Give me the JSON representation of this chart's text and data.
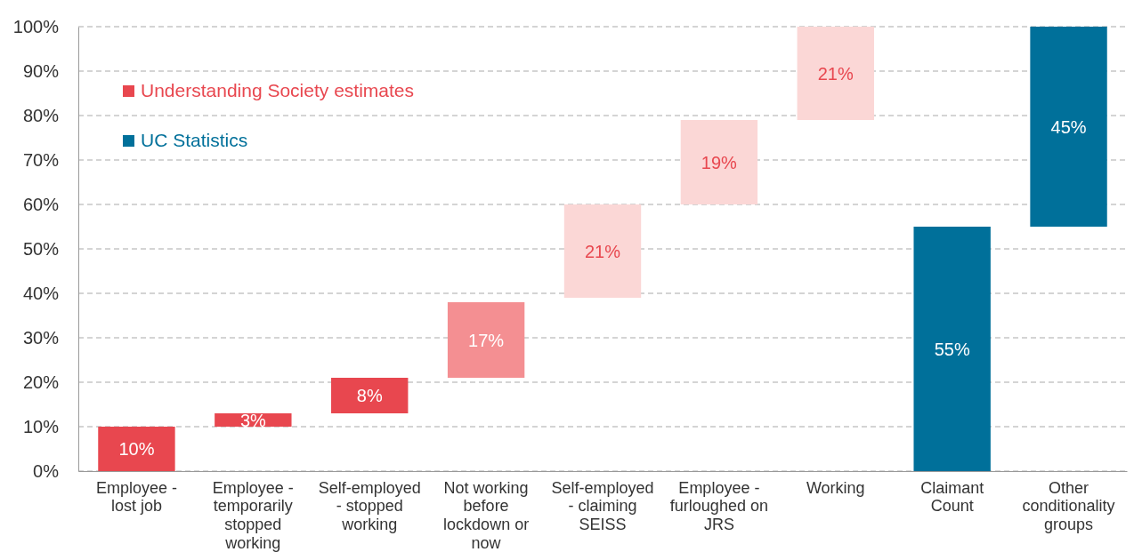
{
  "chart_data": {
    "type": "bar",
    "categories": [
      "Employee - lost job",
      "Employee - temporarily stopped working",
      "Self-employed - stopped working",
      "Not working before lockdown or now",
      "Self-employed - claiming SEISS",
      "Employee - furloughed on JRS",
      "Working",
      "Claimant Count",
      "Other conditionality groups"
    ],
    "series": [
      {
        "name": "Understanding Society estimates",
        "color": "#e8474f",
        "values": [
          10,
          3,
          8,
          17,
          21,
          19,
          21,
          null,
          null
        ],
        "base": [
          0,
          10,
          13,
          21,
          39,
          60,
          79,
          null,
          null
        ],
        "colors": [
          "#e8474f",
          "#e8474f",
          "#e8474f",
          "#f48f92",
          "#fbd7d6",
          "#fbd7d6",
          "#fbd7d6",
          null,
          null
        ],
        "value_labels": [
          "10%",
          "3%",
          "8%",
          "17%",
          "21%",
          "19%",
          "21%",
          null,
          null
        ]
      },
      {
        "name": "UC Statistics",
        "color": "#00709a",
        "values": [
          null,
          null,
          null,
          null,
          null,
          null,
          null,
          55,
          45
        ],
        "base": [
          null,
          null,
          null,
          null,
          null,
          null,
          null,
          0,
          55
        ],
        "colors": [
          null,
          null,
          null,
          null,
          null,
          null,
          null,
          "#00709a",
          "#00709a"
        ],
        "value_labels": [
          null,
          null,
          null,
          null,
          null,
          null,
          null,
          "55%",
          "45%"
        ]
      }
    ],
    "ylim": [
      0,
      100
    ],
    "yticks": [
      {
        "value": 0,
        "label": "0%"
      },
      {
        "value": 10,
        "label": "10%"
      },
      {
        "value": 20,
        "label": "20%"
      },
      {
        "value": 30,
        "label": "30%"
      },
      {
        "value": 40,
        "label": "40%"
      },
      {
        "value": 50,
        "label": "50%"
      },
      {
        "value": 60,
        "label": "60%"
      },
      {
        "value": 70,
        "label": "70%"
      },
      {
        "value": 80,
        "label": "80%"
      },
      {
        "value": 90,
        "label": "90%"
      },
      {
        "value": 100,
        "label": "100%"
      }
    ],
    "grid": "y",
    "legend": "top left"
  }
}
